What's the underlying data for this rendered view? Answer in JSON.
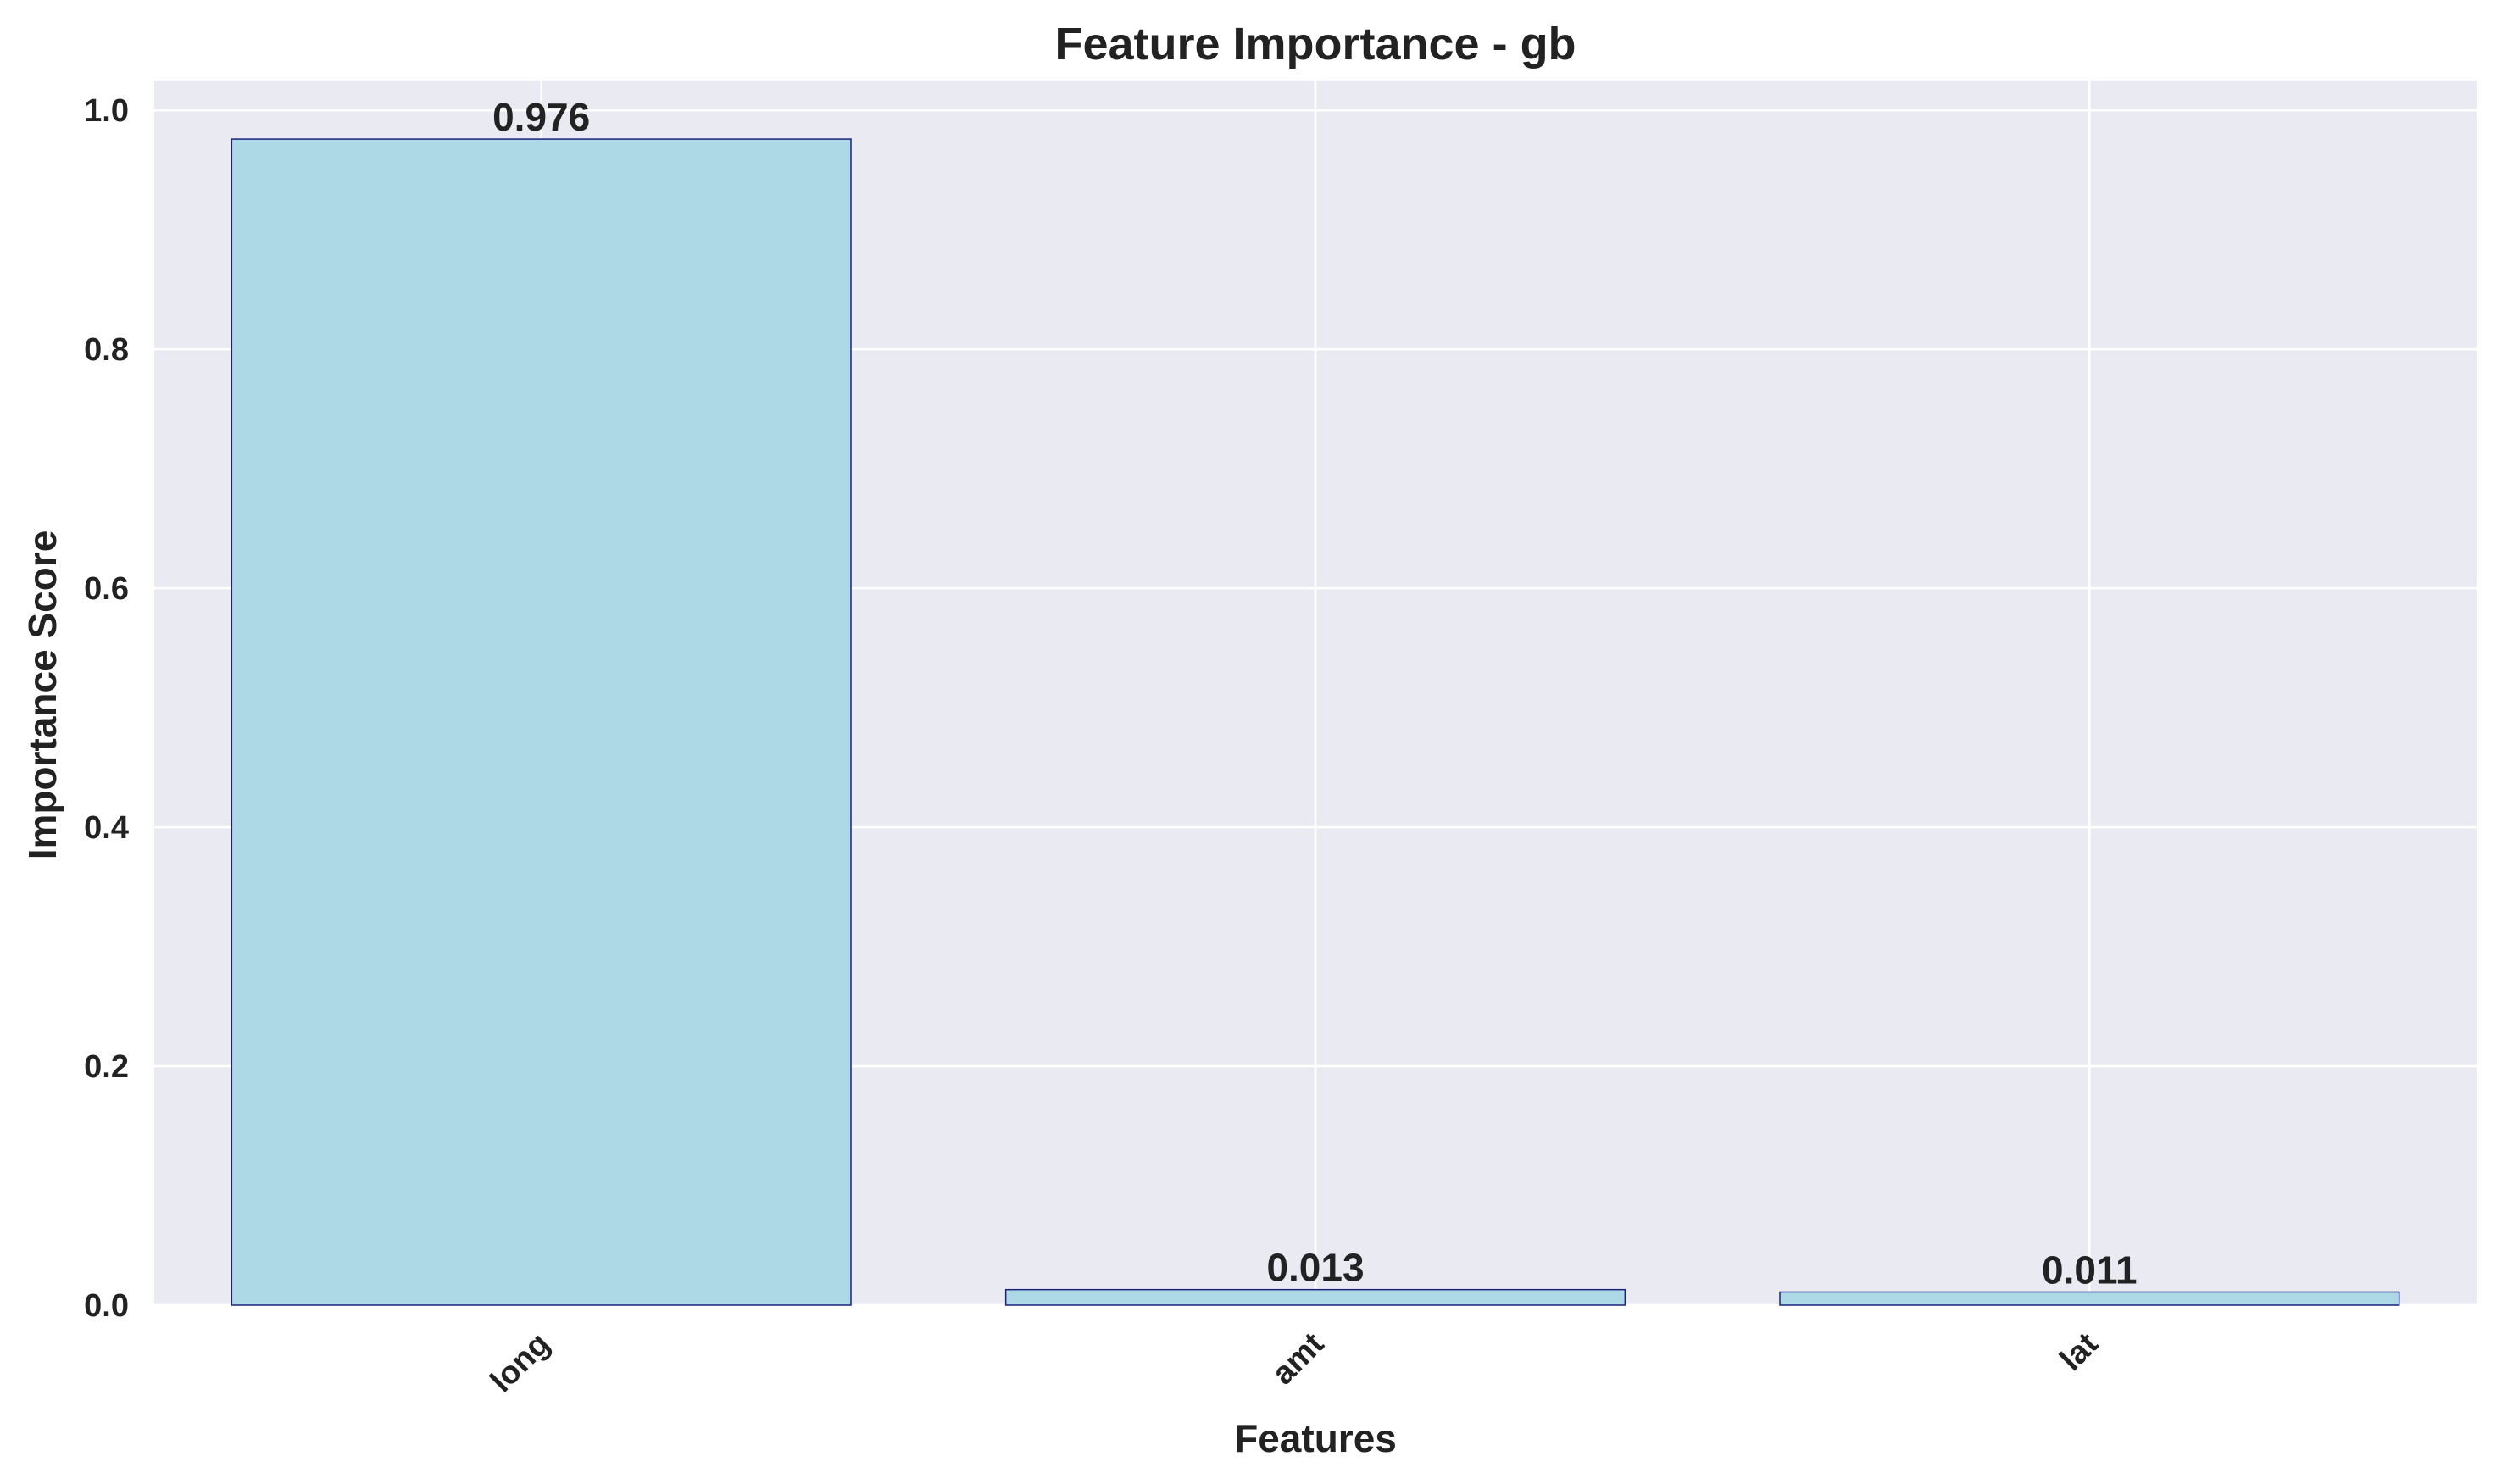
{
  "chart_data": {
    "type": "bar",
    "title": "Feature Importance - gb",
    "xlabel": "Features",
    "ylabel": "Importance Score",
    "categories": [
      "long",
      "amt",
      "lat"
    ],
    "values": [
      0.976,
      0.013,
      0.011
    ],
    "value_labels": [
      "0.976",
      "0.013",
      "0.011"
    ],
    "ylim": [
      0,
      1.025
    ],
    "yticks": [
      0.0,
      0.2,
      0.4,
      0.6,
      0.8,
      1.0
    ],
    "ytick_labels": [
      "0.0",
      "0.2",
      "0.4",
      "0.6",
      "0.8",
      "1.0"
    ],
    "grid": true,
    "colors": {
      "bar_fill": "#add8e6",
      "bar_edge": "#1a237e",
      "plot_background": "#eaeaf2",
      "grid": "#ffffff",
      "text": "#222222"
    }
  }
}
